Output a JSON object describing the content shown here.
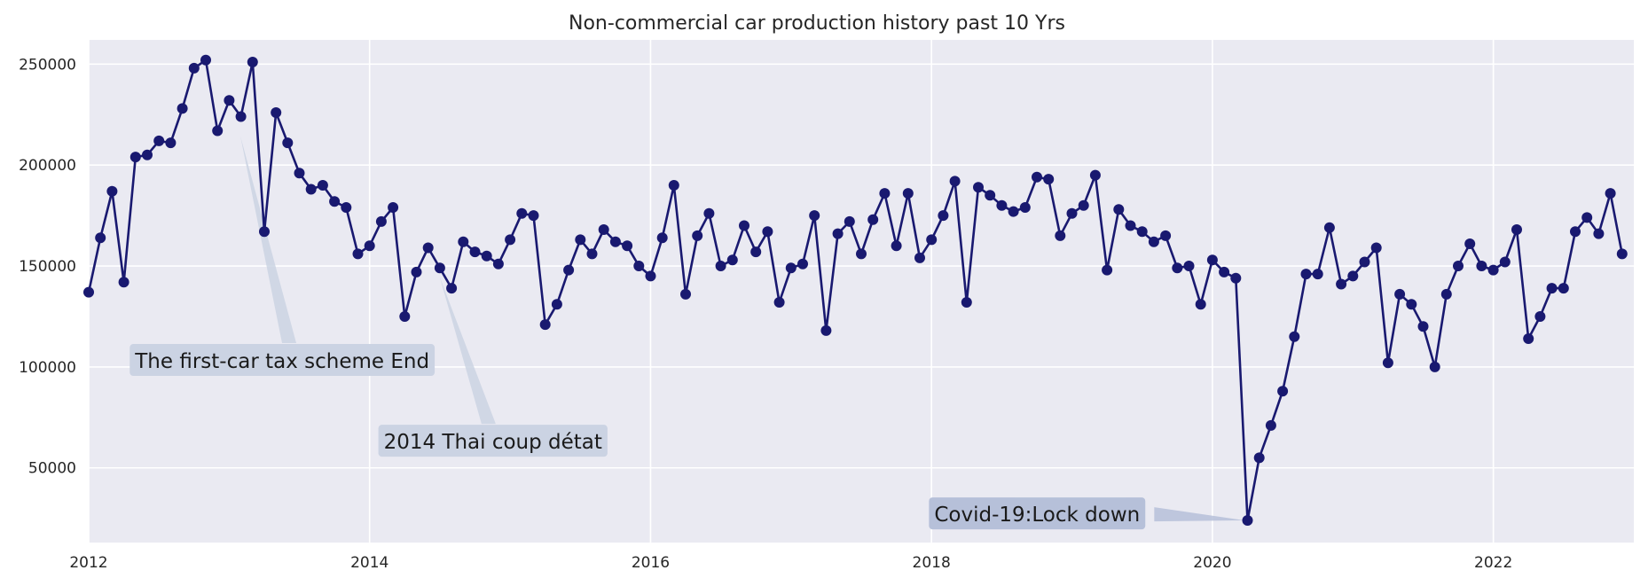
{
  "chart_data": {
    "type": "line",
    "title": "Non-commercial car production history past 10 Yrs",
    "xlabel": "",
    "ylabel": "",
    "x_start": 2012.0,
    "x_step": 0.08333333,
    "xlim": [
      2012,
      2023
    ],
    "ylim": [
      13000,
      262000
    ],
    "xticks": [
      2012,
      2014,
      2016,
      2018,
      2020,
      2022
    ],
    "xtick_labels": [
      "2012",
      "2014",
      "2016",
      "2018",
      "2020",
      "2022"
    ],
    "yticks": [
      50000,
      100000,
      150000,
      200000,
      250000
    ],
    "ytick_labels": [
      "50000",
      "100000",
      "150000",
      "200000",
      "250000"
    ],
    "grid": true,
    "line_color": "#191970",
    "background_color": "#eaeaf2",
    "series": [
      {
        "name": "Production",
        "values": [
          137000,
          164000,
          187000,
          142000,
          204000,
          205000,
          212000,
          211000,
          228000,
          248000,
          252000,
          217000,
          232000,
          224000,
          251000,
          167000,
          226000,
          211000,
          196000,
          188000,
          190000,
          182000,
          179000,
          156000,
          160000,
          172000,
          179000,
          125000,
          147000,
          159000,
          149000,
          139000,
          162000,
          157000,
          155000,
          151000,
          163000,
          176000,
          175000,
          121000,
          131000,
          148000,
          163000,
          156000,
          168000,
          162000,
          160000,
          150000,
          145000,
          164000,
          190000,
          136000,
          165000,
          176000,
          150000,
          153000,
          170000,
          157000,
          167000,
          132000,
          149000,
          151000,
          175000,
          118000,
          166000,
          172000,
          156000,
          173000,
          186000,
          160000,
          186000,
          154000,
          163000,
          175000,
          192000,
          132000,
          189000,
          185000,
          180000,
          177000,
          179000,
          194000,
          193000,
          165000,
          176000,
          180000,
          195000,
          148000,
          178000,
          170000,
          167000,
          162000,
          165000,
          149000,
          150000,
          131000,
          153000,
          147000,
          144000,
          24000,
          55000,
          71000,
          88000,
          115000,
          146000,
          146000,
          169000,
          141000,
          145000,
          152000,
          159000,
          102000,
          136000,
          131000,
          120000,
          100000,
          136000,
          150000,
          161000,
          150000,
          148000,
          152000,
          168000,
          114000,
          125000,
          139000,
          139000,
          167000,
          174000,
          166000,
          186000,
          156000
        ]
      }
    ],
    "annotations": [
      {
        "text": "The first-car tax scheme End",
        "target_x": 2013.08,
        "target_y": 217000,
        "text_x": 2012.33,
        "text_y": 103000,
        "box_color": "#cbd3e3"
      },
      {
        "text": "2014 Thai coup détat",
        "target_x": 2014.5,
        "target_y": 147000,
        "text_x": 2014.1,
        "text_y": 63000,
        "box_color": "#cbd3e3"
      },
      {
        "text": "Covid-19:Lock down",
        "target_x": 2020.25,
        "target_y": 24000,
        "text_x": 2018.02,
        "text_y": 27000,
        "box_color": "#b6c0d9"
      }
    ]
  }
}
